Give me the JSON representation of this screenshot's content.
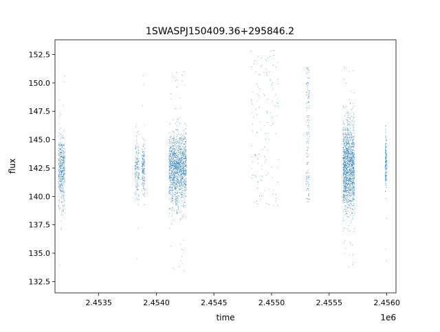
{
  "chart_data": {
    "type": "scatter",
    "title": "1SWASPJ150409.36+295846.2",
    "xlabel": "time",
    "ylabel": "flux",
    "x_offset_label": "1e6",
    "xlim": [
      2453120,
      2456080
    ],
    "ylim": [
      131.5,
      153.8
    ],
    "x_ticks": [
      2453500,
      2454000,
      2454500,
      2455000,
      2455500,
      2456000
    ],
    "x_tick_labels": [
      "2.4535",
      "2.4540",
      "2.4545",
      "2.4550",
      "2.4555",
      "2.4560"
    ],
    "y_ticks": [
      132.5,
      135.0,
      137.5,
      140.0,
      142.5,
      145.0,
      147.5,
      150.0,
      152.5
    ],
    "y_tick_labels": [
      "132.5",
      "135.0",
      "137.5",
      "140.0",
      "142.5",
      "145.0",
      "147.5",
      "150.0",
      "152.5"
    ],
    "grid": false,
    "legend": "none",
    "marker_color": "#1f77b4",
    "observing_seasons": [
      {
        "x_range": [
          2453150,
          2453205
        ],
        "y_center": 142.3,
        "y_spread": 1.5,
        "density": "medium"
      },
      {
        "x_range": [
          2453815,
          2453850
        ],
        "y_center": 142.4,
        "y_spread": 1.3,
        "density": "low"
      },
      {
        "x_range": [
          2453875,
          2453900
        ],
        "y_center": 142.4,
        "y_spread": 1.2,
        "density": "low"
      },
      {
        "x_range": [
          2454110,
          2454260
        ],
        "y_center": 142.4,
        "y_spread": 1.6,
        "density": "high"
      },
      {
        "x_range": [
          2454820,
          2455060
        ],
        "y_center": 146.0,
        "y_spread": 3.5,
        "density": "sparse"
      },
      {
        "x_range": [
          2455300,
          2455330
        ],
        "y_center": 145.5,
        "y_spread": 3.0,
        "density": "sparse"
      },
      {
        "x_range": [
          2455620,
          2455720
        ],
        "y_center": 142.5,
        "y_spread": 2.0,
        "density": "high"
      },
      {
        "x_range": [
          2455985,
          2456000
        ],
        "y_center": 143.0,
        "y_spread": 1.2,
        "density": "low"
      }
    ]
  }
}
